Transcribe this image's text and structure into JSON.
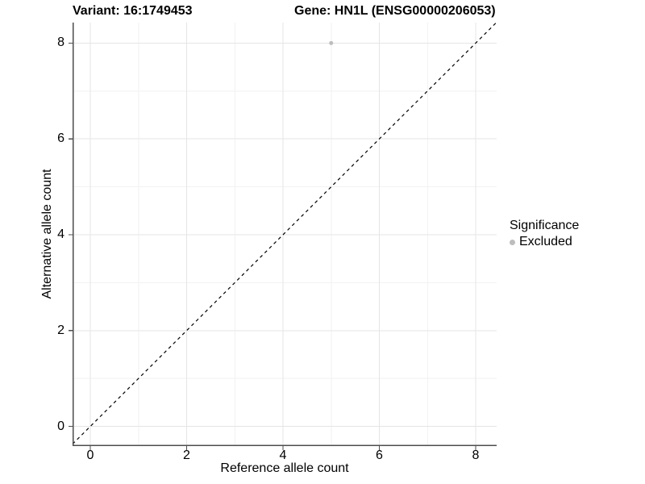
{
  "chart_data": {
    "type": "scatter",
    "title_left": "Variant: 16:1749453",
    "title_right": "Gene: HN1L (ENSG00000206053)",
    "xlabel": "Reference allele count",
    "ylabel": "Alternative allele count",
    "xlim": [
      -0.4,
      8.4
    ],
    "ylim": [
      -0.4,
      8.4
    ],
    "x_major_ticks": [
      0,
      2,
      4,
      6,
      8
    ],
    "y_major_ticks": [
      0,
      2,
      4,
      6,
      8
    ],
    "x_minor_ticks": [
      1,
      3,
      5,
      7
    ],
    "y_minor_ticks": [
      1,
      3,
      5,
      7
    ],
    "grid": true,
    "series": [
      {
        "name": "Excluded",
        "color": "#bdbdbd",
        "points": [
          {
            "x": 5,
            "y": 8
          }
        ]
      }
    ],
    "abline": {
      "slope": 1,
      "intercept": 0,
      "style": "dashed",
      "color": "#000000"
    },
    "legend": {
      "title": "Significance",
      "position": "right",
      "items": [
        {
          "label": "Excluded",
          "color": "#bdbdbd"
        }
      ]
    },
    "colors": {
      "background": "#ffffff",
      "major_grid": "#e5e5e5",
      "minor_grid": "#f2f2f2",
      "axis_line": "#4d4d4d",
      "text": "#000000"
    }
  }
}
